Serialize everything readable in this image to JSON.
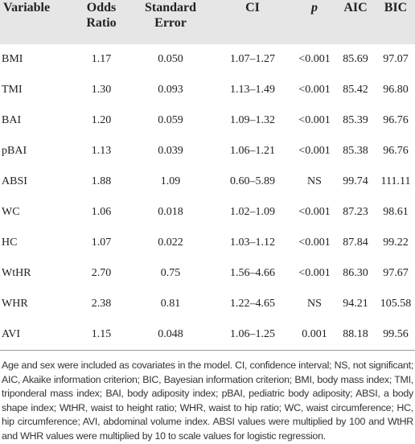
{
  "table": {
    "headers": [
      "Variable",
      "Odds Ratio",
      "Standard Error",
      "CI",
      "p",
      "AIC",
      "BIC"
    ],
    "rows": [
      [
        "BMI",
        "1.17",
        "0.050",
        "1.07–1.27",
        "<0.001",
        "85.69",
        "97.07"
      ],
      [
        "TMI",
        "1.30",
        "0.093",
        "1.13–1.49",
        "<0.001",
        "85.42",
        "96.80"
      ],
      [
        "BAI",
        "1.20",
        "0.059",
        "1.09–1.32",
        "<0.001",
        "85.39",
        "96.76"
      ],
      [
        "pBAI",
        "1.13",
        "0.039",
        "1.06–1.21",
        "<0.001",
        "85.38",
        "96.76"
      ],
      [
        "ABSI",
        "1.88",
        "1.09",
        "0.60–5.89",
        "NS",
        "99.74",
        "111.11"
      ],
      [
        "WC",
        "1.06",
        "0.018",
        "1.02–1.09",
        "<0.001",
        "87.23",
        "98.61"
      ],
      [
        "HC",
        "1.07",
        "0.022",
        "1.03–1.12",
        "<0.001",
        "87.84",
        "99.22"
      ],
      [
        "WtHR",
        "2.70",
        "0.75",
        "1.56–4.66",
        "<0.001",
        "86.30",
        "97.67"
      ],
      [
        "WHR",
        "2.38",
        "0.81",
        "1.22–4.65",
        "NS",
        "94.21",
        "105.58"
      ],
      [
        "AVI",
        "1.15",
        "0.048",
        "1.06–1.25",
        "0.001",
        "88.18",
        "99.56"
      ]
    ],
    "footnote": "Age and sex were included as covariates in the model. CI, confidence interval; NS, not significant; AIC, Akaike information criterion; BIC, Bayesian information criterion; BMI, body mass index; TMI, triponderal mass index; BAI, body adiposity index; pBAI, pediatric body adiposity; ABSI, a body shape index; WtHR, waist to height ratio; WHR, waist to hip ratio; WC, waist circumference; HC, hip circumference; AVI, abdominal volume index. ABSI values were multiplied by 100 and WtHR and WHR values were multiplied by 10 to scale values for logistic regression."
  }
}
